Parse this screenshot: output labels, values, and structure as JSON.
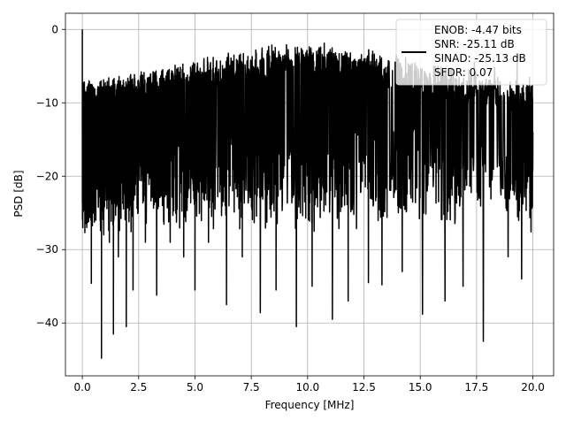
{
  "chart_data": {
    "type": "line",
    "title": "",
    "xlabel": "Frequency [MHz]",
    "ylabel": "PSD [dB]",
    "xlim": [
      -0.75,
      20.92
    ],
    "ylim": [
      -47.2,
      2.2
    ],
    "xticks": [
      0.0,
      2.5,
      5.0,
      7.5,
      10.0,
      12.5,
      15.0,
      17.5,
      20.0
    ],
    "xtick_labels": [
      "0.0",
      "2.5",
      "5.0",
      "7.5",
      "10.0",
      "12.5",
      "15.0",
      "17.5",
      "20.0"
    ],
    "yticks": [
      0,
      -10,
      -20,
      -30,
      -40
    ],
    "ytick_labels": [
      "0",
      "−10",
      "−20",
      "−30",
      "−40"
    ],
    "grid": true,
    "legend_position": "upper-right",
    "series": [
      {
        "name": "ENOB: -4.47 bits\nSNR: -25.11 dB\nSINAD: -25.13 dB\nSFDR: 0.07",
        "color": "#000000",
        "x_range": [
          0.0,
          20.0
        ],
        "points": [
          [
            0.0,
            0.0
          ],
          [
            0.02,
            -27.0
          ],
          [
            0.05,
            -8.5
          ],
          [
            0.08,
            -16.0
          ],
          [
            0.12,
            -24.0
          ],
          [
            0.2,
            -11.0
          ],
          [
            0.3,
            -25.0
          ],
          [
            0.4,
            -34.6
          ],
          [
            0.5,
            -12.0
          ],
          [
            0.6,
            -26.0
          ],
          [
            0.8,
            -9.5
          ],
          [
            0.85,
            -44.8
          ],
          [
            0.95,
            -28.0
          ],
          [
            1.1,
            -11.5
          ],
          [
            1.2,
            -29.0
          ],
          [
            1.38,
            -41.5
          ],
          [
            1.5,
            -10.5
          ],
          [
            1.6,
            -31.0
          ],
          [
            1.75,
            -12.0
          ],
          [
            1.95,
            -40.5
          ],
          [
            2.1,
            -9.8
          ],
          [
            2.25,
            -35.5
          ],
          [
            2.5,
            -10.5
          ],
          [
            2.8,
            -29.0
          ],
          [
            3.1,
            -9.0
          ],
          [
            3.3,
            -36.2
          ],
          [
            3.6,
            -8.5
          ],
          [
            3.9,
            -29.0
          ],
          [
            4.2,
            -8.2
          ],
          [
            4.5,
            -31.0
          ],
          [
            4.8,
            -7.5
          ],
          [
            5.0,
            -35.5
          ],
          [
            5.3,
            -6.8
          ],
          [
            5.6,
            -29.0
          ],
          [
            6.0,
            -6.5
          ],
          [
            6.4,
            -37.5
          ],
          [
            6.8,
            -6.0
          ],
          [
            7.1,
            -31.0
          ],
          [
            7.5,
            -5.0
          ],
          [
            7.9,
            -38.6
          ],
          [
            8.3,
            -6.0
          ],
          [
            8.6,
            -35.5
          ],
          [
            9.0,
            -4.8
          ],
          [
            9.5,
            -40.5
          ],
          [
            9.9,
            -5.5
          ],
          [
            10.2,
            -35.0
          ],
          [
            10.6,
            -5.5
          ],
          [
            11.1,
            -39.5
          ],
          [
            11.5,
            -5.2
          ],
          [
            11.8,
            -37.0
          ],
          [
            12.2,
            -5.5
          ],
          [
            12.7,
            -34.5
          ],
          [
            13.1,
            -5.8
          ],
          [
            13.3,
            -34.8
          ],
          [
            13.9,
            -5.0
          ],
          [
            14.2,
            -33.0
          ],
          [
            14.6,
            -4.8
          ],
          [
            15.1,
            -38.8
          ],
          [
            15.6,
            -5.0
          ],
          [
            16.1,
            -37.0
          ],
          [
            16.4,
            -5.5
          ],
          [
            16.9,
            -35.0
          ],
          [
            17.4,
            -4.5
          ],
          [
            17.8,
            -42.5
          ],
          [
            18.3,
            -5.2
          ],
          [
            18.9,
            -31.0
          ],
          [
            19.3,
            -4.5
          ],
          [
            19.5,
            -34.0
          ],
          [
            19.85,
            -6.5
          ],
          [
            20.0,
            -14.0
          ]
        ]
      }
    ]
  }
}
